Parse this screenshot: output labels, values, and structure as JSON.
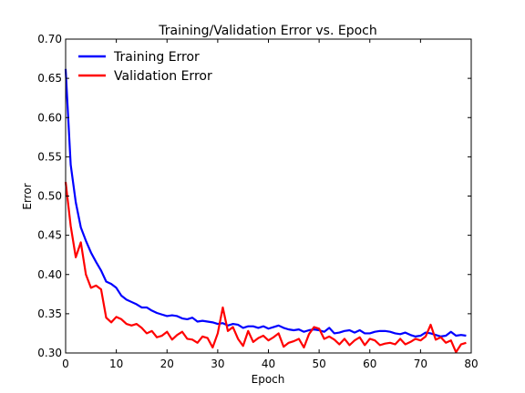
{
  "chart_data": {
    "type": "line",
    "title": "Training/Validation Error vs. Epoch",
    "xlabel": "Epoch",
    "ylabel": "Error",
    "xlim": [
      0,
      80
    ],
    "ylim": [
      0.3,
      0.7
    ],
    "xticks": [
      0,
      10,
      20,
      30,
      40,
      50,
      60,
      70,
      80
    ],
    "yticks": [
      0.3,
      0.35,
      0.4,
      0.45,
      0.5,
      0.55,
      0.6,
      0.65,
      0.7
    ],
    "xtick_labels": [
      "0",
      "10",
      "20",
      "30",
      "40",
      "50",
      "60",
      "70",
      "80"
    ],
    "ytick_labels": [
      "0.30",
      "0.35",
      "0.40",
      "0.45",
      "0.50",
      "0.55",
      "0.60",
      "0.65",
      "0.70"
    ],
    "grid": false,
    "legend_position": "top-left",
    "x": [
      0,
      1,
      2,
      3,
      4,
      5,
      6,
      7,
      8,
      9,
      10,
      11,
      12,
      13,
      14,
      15,
      16,
      17,
      18,
      19,
      20,
      21,
      22,
      23,
      24,
      25,
      26,
      27,
      28,
      29,
      30,
      31,
      32,
      33,
      34,
      35,
      36,
      37,
      38,
      39,
      40,
      41,
      42,
      43,
      44,
      45,
      46,
      47,
      48,
      49,
      50,
      51,
      52,
      53,
      54,
      55,
      56,
      57,
      58,
      59,
      60,
      61,
      62,
      63,
      64,
      65,
      66,
      67,
      68,
      69,
      70,
      71,
      72,
      73,
      74,
      75,
      76,
      77,
      78,
      79
    ],
    "series": [
      {
        "name": "Training Error",
        "color": "#0000ff",
        "values": [
          0.662,
          0.54,
          0.492,
          0.46,
          0.443,
          0.428,
          0.416,
          0.405,
          0.391,
          0.388,
          0.383,
          0.373,
          0.368,
          0.365,
          0.362,
          0.358,
          0.358,
          0.354,
          0.351,
          0.349,
          0.347,
          0.348,
          0.347,
          0.344,
          0.343,
          0.345,
          0.34,
          0.341,
          0.34,
          0.339,
          0.337,
          0.338,
          0.335,
          0.337,
          0.336,
          0.332,
          0.334,
          0.334,
          0.332,
          0.334,
          0.331,
          0.333,
          0.335,
          0.332,
          0.33,
          0.329,
          0.33,
          0.327,
          0.329,
          0.33,
          0.329,
          0.327,
          0.332,
          0.325,
          0.326,
          0.328,
          0.329,
          0.326,
          0.329,
          0.325,
          0.325,
          0.327,
          0.328,
          0.328,
          0.327,
          0.325,
          0.324,
          0.326,
          0.323,
          0.321,
          0.322,
          0.326,
          0.325,
          0.323,
          0.321,
          0.322,
          0.327,
          0.322,
          0.323,
          0.322
        ]
      },
      {
        "name": "Validation Error",
        "color": "#ff0000",
        "values": [
          0.518,
          0.462,
          0.422,
          0.441,
          0.4,
          0.383,
          0.386,
          0.381,
          0.345,
          0.339,
          0.346,
          0.343,
          0.337,
          0.335,
          0.337,
          0.332,
          0.325,
          0.328,
          0.32,
          0.322,
          0.327,
          0.317,
          0.323,
          0.327,
          0.318,
          0.317,
          0.313,
          0.321,
          0.319,
          0.307,
          0.325,
          0.358,
          0.328,
          0.333,
          0.318,
          0.309,
          0.328,
          0.314,
          0.319,
          0.322,
          0.316,
          0.32,
          0.325,
          0.308,
          0.313,
          0.315,
          0.318,
          0.307,
          0.324,
          0.333,
          0.331,
          0.318,
          0.321,
          0.317,
          0.311,
          0.318,
          0.31,
          0.316,
          0.32,
          0.31,
          0.318,
          0.316,
          0.31,
          0.312,
          0.313,
          0.311,
          0.318,
          0.311,
          0.314,
          0.318,
          0.316,
          0.321,
          0.336,
          0.317,
          0.32,
          0.313,
          0.316,
          0.301,
          0.311,
          0.313
        ]
      }
    ]
  }
}
